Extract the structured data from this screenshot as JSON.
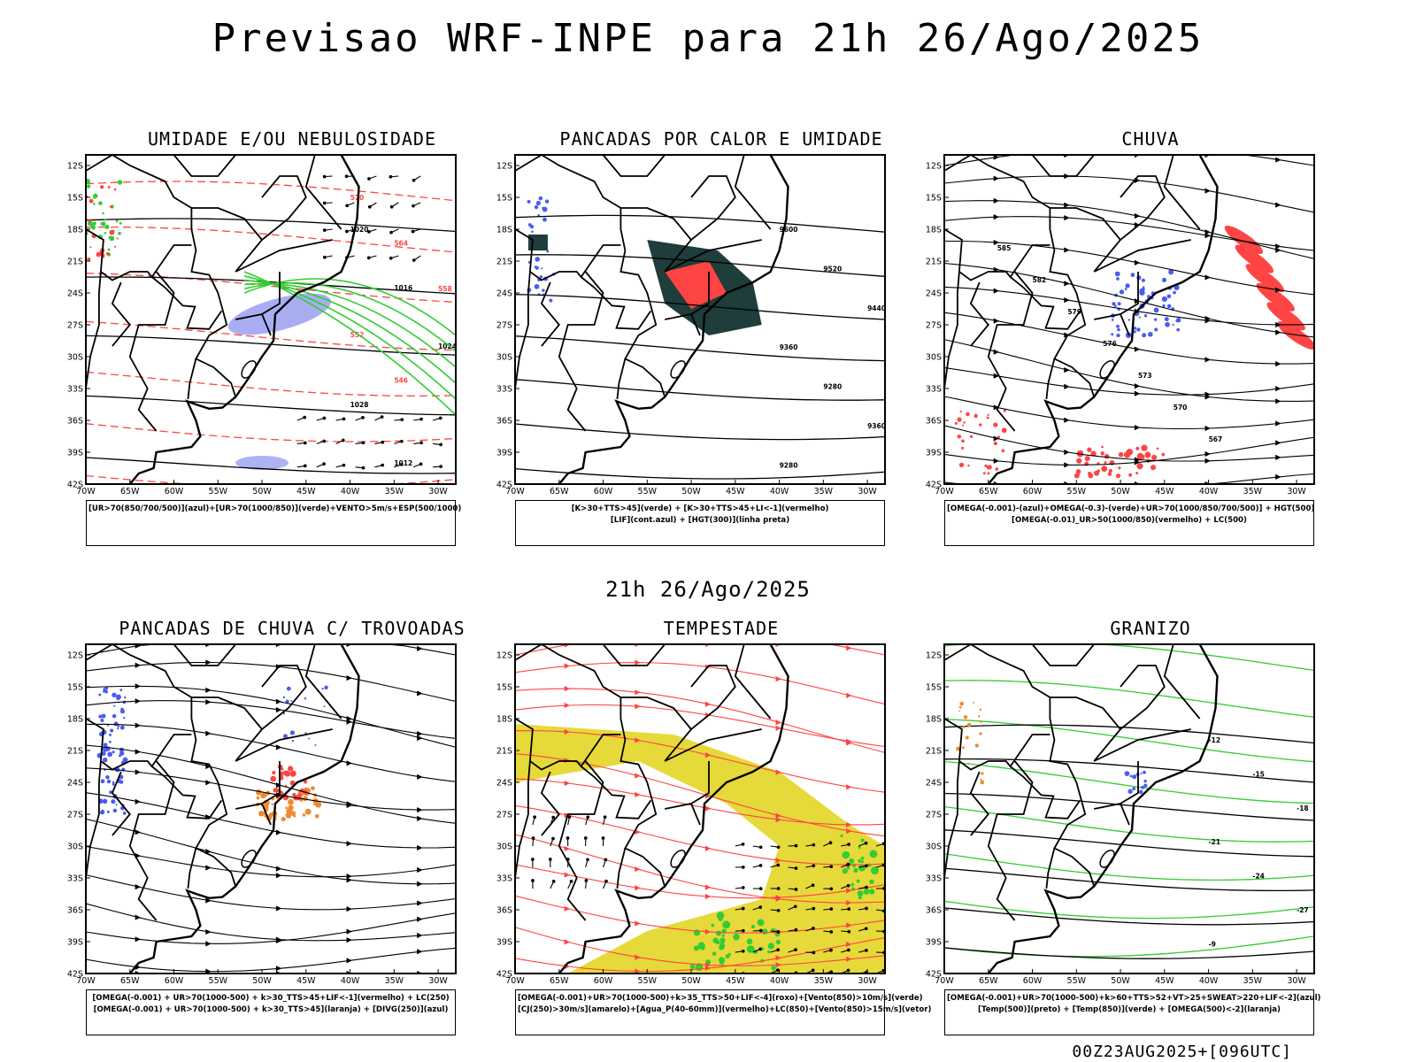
{
  "header": {
    "title": "Previsao WRF-INPE  para 21h 26/Ago/2025"
  },
  "middle": {
    "date": "21h 26/Ago/2025"
  },
  "footer": {
    "run": "00Z23AUG2025+[096UTC]"
  },
  "axes": {
    "lat_labels": [
      "12S",
      "15S",
      "18S",
      "21S",
      "24S",
      "27S",
      "30S",
      "33S",
      "36S",
      "39S",
      "42S"
    ],
    "lon_labels": [
      "70W",
      "65W",
      "60W",
      "55W",
      "50W",
      "45W",
      "40W",
      "35W",
      "30W"
    ]
  },
  "colors": {
    "blue": "#4a5cf0",
    "green": "#33cc33",
    "red": "#ff4444",
    "orange": "#f08a30",
    "yellow": "#e6d93a",
    "dark": "#1f3d3a",
    "lavender": "#9aa0f0"
  },
  "panels": [
    {
      "id": "umidade",
      "title": "UMIDADE E/OU NEBULOSIDADE",
      "legend": [
        "[UR>70(850/700/500)](azul)+[UR>70(1000/850)](verde)+VENTO>5m/s+ESP(500/1000)"
      ],
      "contour_labels": [
        "1020",
        "1016",
        "1024",
        "1028",
        "1012",
        "570",
        "564",
        "558",
        "552",
        "546"
      ]
    },
    {
      "id": "pancadas_calor",
      "title": "PANCADAS POR CALOR E UMIDADE",
      "legend": [
        "[K>30+TTS>45](verde) + [K>30+TTS>45+LI<-1](vermelho)",
        "[LIF](cont.azul) + [HGT(300)](linha preta)"
      ],
      "contour_labels": [
        "9600",
        "9520",
        "9440",
        "9360",
        "9280"
      ]
    },
    {
      "id": "chuva",
      "title": "CHUVA",
      "legend": [
        "[OMEGA(-0.001)-(azul)+OMEGA(-0.3)-(verde)+UR>70(1000/850/700/500)] + HGT(500)",
        "[OMEGA(-0.01)_UR>50(1000/850)(vermelho) + LC(500)"
      ],
      "contour_labels": [
        "585",
        "582",
        "579",
        "576",
        "573",
        "570",
        "567"
      ]
    },
    {
      "id": "pancadas_trovoadas",
      "title": "PANCADAS DE CHUVA C/ TROVOADAS",
      "legend": [
        "[OMEGA(-0.001) + UR>70(1000-500) + k>30_TTS>45+LIF<-1](vermelho) + LC(250)",
        "[OMEGA(-0.001) + UR>70(1000-500) + k>30_TTS>45](laranja) + [DIVG(250)](azul)"
      ],
      "contour_labels": []
    },
    {
      "id": "tempestade",
      "title": "TEMPESTADE",
      "legend": [
        "[OMEGA(-0.001)+UR>70(1000-500)+k>35_TTS>50+LIF<-4](roxo)+[Vento(850)>10m/s](verde)",
        "[CJ(250)>30m/s](amarelo)+[Agua_P(40-60mm)](vermelho)+LC(850)+[Vento(850)>15m/s](vetor)"
      ],
      "contour_labels": []
    },
    {
      "id": "granizo",
      "title": "GRANIZO",
      "legend": [
        "[OMEGA(-0.001)+UR>70(1000-500)+k>60+TTS>52+VT>25+SWEAT>220+LIF<-2](azul)",
        "[Temp(500)](preto) + [Temp(850)](verde) + [OMEGA(500)<-2](laranja)"
      ],
      "contour_labels": [
        "-12",
        "-15",
        "-18",
        "-21",
        "-24",
        "-27",
        "-9"
      ]
    }
  ]
}
